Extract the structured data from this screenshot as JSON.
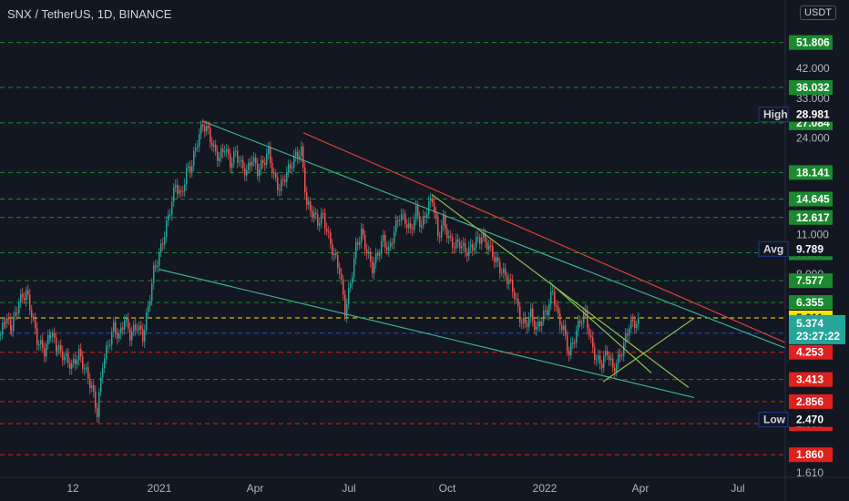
{
  "header": {
    "title": "SNX / TetherUS, 1D, BINANCE",
    "currency": "USDT"
  },
  "chart_data": {
    "type": "candlestick",
    "title": "SNX / TetherUS, 1D, BINANCE",
    "x_ticks": [
      "12",
      "2021",
      "Apr",
      "Jul",
      "Oct",
      "2022",
      "Apr",
      "Jul"
    ],
    "y_ticks": [
      "42.000",
      "33.000",
      "24.000",
      "11.000",
      "8.000",
      "1.610"
    ],
    "y_scale": "log",
    "ylim": [
      1.55,
      73
    ],
    "price_levels": [
      {
        "value": 51.806,
        "label": "51.806",
        "color": "#1b8a2e",
        "style": "green-dashed"
      },
      {
        "value": 36.032,
        "label": "36.032",
        "color": "#1b8a2e",
        "style": "green-dashed"
      },
      {
        "value": 27.084,
        "label": "27.084",
        "color": "#1b8a2e",
        "style": "green-dashed"
      },
      {
        "value": 18.141,
        "label": "18.141",
        "color": "#1b8a2e",
        "style": "green-dashed"
      },
      {
        "value": 14.645,
        "label": "14.645",
        "color": "#1b8a2e",
        "style": "green-dashed"
      },
      {
        "value": 12.617,
        "label": "12.617",
        "color": "#1b8a2e",
        "style": "green-dashed"
      },
      {
        "value": 9.488,
        "label": "9.488",
        "color": "#1b8a2e",
        "style": "green-dashed"
      },
      {
        "value": 7.577,
        "label": "7.577",
        "color": "#1b8a2e",
        "style": "green-dashed"
      },
      {
        "value": 6.355,
        "label": "6.355",
        "color": "#1b8a2e",
        "style": "green-dashed"
      },
      {
        "value": 5.611,
        "label": "5.611",
        "color": "#f7e600",
        "style": "yellow-dashed"
      },
      {
        "value": 4.96,
        "label": "4.960",
        "color": "#1e4fd6",
        "style": "blue-dashed"
      },
      {
        "value": 4.253,
        "label": "4.253",
        "color": "#e0201d",
        "style": "red-dashed"
      },
      {
        "value": 3.413,
        "label": "3.413",
        "color": "#e0201d",
        "style": "red-dashed"
      },
      {
        "value": 2.856,
        "label": "2.856",
        "color": "#e0201d",
        "style": "red-dashed"
      },
      {
        "value": 2.39,
        "label": "2.390",
        "color": "#e0201d",
        "style": "red-dashed"
      },
      {
        "value": 1.86,
        "label": "1.860",
        "color": "#e0201d",
        "style": "red-dashed"
      }
    ],
    "markers": [
      {
        "label": "High",
        "value": 28.981
      },
      {
        "label": "Avg",
        "value": 9.789
      },
      {
        "label": "Low",
        "value": 2.47
      }
    ],
    "current": {
      "price": "5.374",
      "countdown": "23:27:22",
      "color": "#26a69a"
    },
    "series_close": [
      [
        0,
        4.9
      ],
      [
        5,
        5.6
      ],
      [
        12,
        5.2
      ],
      [
        20,
        6.4
      ],
      [
        28,
        6.9
      ],
      [
        34,
        5.8
      ],
      [
        40,
        4.7
      ],
      [
        48,
        4.3
      ],
      [
        55,
        5.0
      ],
      [
        62,
        4.4
      ],
      [
        70,
        4.1
      ],
      [
        78,
        3.8
      ],
      [
        86,
        4.2
      ],
      [
        94,
        3.6
      ],
      [
        100,
        3.2
      ],
      [
        106,
        2.6
      ],
      [
        112,
        3.9
      ],
      [
        118,
        4.5
      ],
      [
        124,
        5.2
      ],
      [
        130,
        4.8
      ],
      [
        136,
        5.6
      ],
      [
        142,
        4.9
      ],
      [
        150,
        5.3
      ],
      [
        156,
        4.8
      ],
      [
        162,
        6.1
      ],
      [
        168,
        8.2
      ],
      [
        174,
        9.3
      ],
      [
        180,
        11.1
      ],
      [
        186,
        13.5
      ],
      [
        192,
        16.5
      ],
      [
        198,
        15.0
      ],
      [
        204,
        18.2
      ],
      [
        210,
        19.4
      ],
      [
        216,
        23.5
      ],
      [
        222,
        26.8
      ],
      [
        228,
        25.2
      ],
      [
        234,
        21.8
      ],
      [
        240,
        20.4
      ],
      [
        246,
        22.4
      ],
      [
        252,
        19.5
      ],
      [
        258,
        21.3
      ],
      [
        264,
        19.2
      ],
      [
        270,
        18.2
      ],
      [
        276,
        20.5
      ],
      [
        282,
        18.4
      ],
      [
        288,
        19.6
      ],
      [
        294,
        21.5
      ],
      [
        300,
        17.5
      ],
      [
        306,
        15.9
      ],
      [
        312,
        17.6
      ],
      [
        318,
        19.1
      ],
      [
        324,
        20.8
      ],
      [
        330,
        21.5
      ],
      [
        336,
        14.0
      ],
      [
        342,
        13.2
      ],
      [
        348,
        12.2
      ],
      [
        354,
        12.8
      ],
      [
        360,
        10.7
      ],
      [
        366,
        9.3
      ],
      [
        372,
        8.3
      ],
      [
        378,
        5.9
      ],
      [
        384,
        7.4
      ],
      [
        390,
        9.9
      ],
      [
        396,
        11.2
      ],
      [
        402,
        9.6
      ],
      [
        408,
        8.4
      ],
      [
        414,
        9.4
      ],
      [
        420,
        10.6
      ],
      [
        426,
        9.6
      ],
      [
        432,
        11.3
      ],
      [
        438,
        12.9
      ],
      [
        444,
        12.3
      ],
      [
        450,
        11.3
      ],
      [
        456,
        13.3
      ],
      [
        462,
        11.7
      ],
      [
        468,
        13.5
      ],
      [
        474,
        14.8
      ],
      [
        480,
        10.8
      ],
      [
        486,
        12.3
      ],
      [
        492,
        10.6
      ],
      [
        498,
        10.1
      ],
      [
        504,
        10.3
      ],
      [
        510,
        9.6
      ],
      [
        516,
        9.8
      ],
      [
        522,
        10.4
      ],
      [
        528,
        10.8
      ],
      [
        534,
        10.2
      ],
      [
        540,
        9.4
      ],
      [
        546,
        8.6
      ],
      [
        552,
        8.0
      ],
      [
        558,
        7.6
      ],
      [
        564,
        6.8
      ],
      [
        570,
        5.6
      ],
      [
        576,
        5.3
      ],
      [
        582,
        5.8
      ],
      [
        588,
        5.1
      ],
      [
        594,
        5.6
      ],
      [
        600,
        6.0
      ],
      [
        606,
        7.0
      ],
      [
        612,
        5.6
      ],
      [
        618,
        5.1
      ],
      [
        624,
        4.2
      ],
      [
        630,
        4.8
      ],
      [
        636,
        5.5
      ],
      [
        642,
        5.8
      ],
      [
        648,
        4.6
      ],
      [
        654,
        4.0
      ],
      [
        660,
        3.9
      ],
      [
        666,
        4.3
      ],
      [
        672,
        3.7
      ],
      [
        678,
        4.0
      ],
      [
        684,
        4.5
      ],
      [
        690,
        5.3
      ],
      [
        696,
        5.4
      ],
      [
        700,
        5.374
      ]
    ],
    "trendlines": [
      {
        "name": "upper-red",
        "color": "#e0403a",
        "from": [
          333,
          25.0
        ],
        "to": [
          862,
          4.6
        ]
      },
      {
        "name": "upper-teal",
        "color": "#3fb08f",
        "from": [
          222,
          27.5
        ],
        "to": [
          862,
          4.4
        ]
      },
      {
        "name": "lower-teal",
        "color": "#3fb08f",
        "from": [
          175,
          8.3
        ],
        "to": [
          762,
          2.95
        ]
      },
      {
        "name": "green-1",
        "color": "#8bc34a",
        "from": [
          474,
          15.2
        ],
        "to": [
          756,
          3.2
        ]
      },
      {
        "name": "green-2",
        "color": "#8bc34a",
        "from": [
          603,
          7.5
        ],
        "to": [
          715,
          3.6
        ]
      },
      {
        "name": "green-3",
        "color": "#8bc34a",
        "from": [
          662,
          3.35
        ],
        "to": [
          762,
          5.6
        ]
      }
    ]
  }
}
